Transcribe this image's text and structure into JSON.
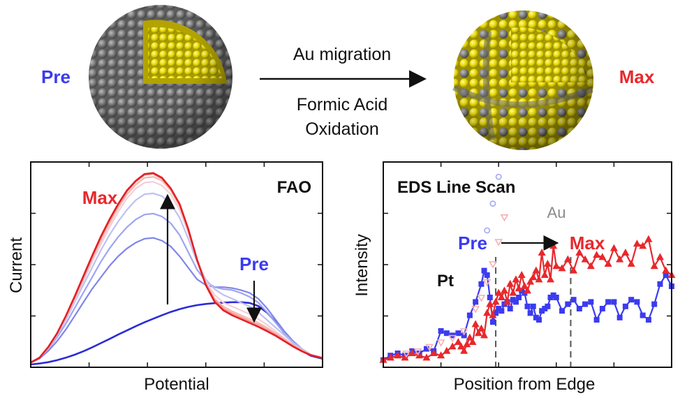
{
  "top": {
    "pre_label": "Pre",
    "max_label": "Max",
    "arrow_top": "Au migration",
    "arrow_bottom_1": "Formic Acid",
    "arrow_bottom_2": "Oxidation"
  },
  "colors": {
    "pre": "#3b3bf0",
    "max": "#e8282c",
    "au": "#f2e100",
    "pt": "#7a7a7a"
  },
  "chart_data": [
    {
      "type": "line",
      "title": "FAO",
      "xlabel": "Potential",
      "ylabel": "Current",
      "annotations": [
        "Max",
        "Pre"
      ],
      "x": [
        0,
        0.03,
        0.06,
        0.09,
        0.12,
        0.15,
        0.18,
        0.21,
        0.24,
        0.27,
        0.3,
        0.33,
        0.36,
        0.39,
        0.42,
        0.45,
        0.48,
        0.51,
        0.54,
        0.57,
        0.6,
        0.63,
        0.66,
        0.69,
        0.72,
        0.75,
        0.78,
        0.81,
        0.84,
        0.87,
        0.9,
        0.93,
        0.96,
        1.0
      ],
      "series": [
        {
          "values": [
            0,
            0.005,
            0.012,
            0.022,
            0.035,
            0.05,
            0.068,
            0.088,
            0.11,
            0.132,
            0.155,
            0.176,
            0.198,
            0.218,
            0.237,
            0.255,
            0.272,
            0.286,
            0.298,
            0.307,
            0.313,
            0.317,
            0.32,
            0.322,
            0.322,
            0.318,
            0.302,
            0.268,
            0.218,
            0.16,
            0.11,
            0.07,
            0.045,
            0.03
          ]
        },
        {
          "values": [
            0.01,
            0.03,
            0.07,
            0.12,
            0.18,
            0.25,
            0.32,
            0.39,
            0.45,
            0.51,
            0.56,
            0.6,
            0.63,
            0.65,
            0.655,
            0.64,
            0.61,
            0.56,
            0.5,
            0.44,
            0.41,
            0.4,
            0.4,
            0.395,
            0.385,
            0.37,
            0.34,
            0.29,
            0.23,
            0.17,
            0.12,
            0.08,
            0.05,
            0.035
          ]
        },
        {
          "values": [
            0.01,
            0.035,
            0.08,
            0.14,
            0.21,
            0.29,
            0.37,
            0.45,
            0.53,
            0.6,
            0.66,
            0.71,
            0.75,
            0.775,
            0.78,
            0.765,
            0.73,
            0.67,
            0.58,
            0.49,
            0.43,
            0.4,
            0.39,
            0.385,
            0.37,
            0.35,
            0.32,
            0.27,
            0.215,
            0.16,
            0.115,
            0.08,
            0.05,
            0.035
          ]
        },
        {
          "values": [
            0.01,
            0.035,
            0.085,
            0.15,
            0.23,
            0.32,
            0.41,
            0.5,
            0.59,
            0.67,
            0.74,
            0.8,
            0.85,
            0.88,
            0.885,
            0.87,
            0.83,
            0.76,
            0.65,
            0.53,
            0.44,
            0.39,
            0.36,
            0.34,
            0.32,
            0.3,
            0.27,
            0.23,
            0.19,
            0.15,
            0.11,
            0.08,
            0.05,
            0.035
          ]
        },
        {
          "values": [
            0.01,
            0.035,
            0.085,
            0.155,
            0.24,
            0.33,
            0.43,
            0.53,
            0.62,
            0.71,
            0.79,
            0.86,
            0.91,
            0.94,
            0.945,
            0.925,
            0.88,
            0.8,
            0.68,
            0.54,
            0.43,
            0.36,
            0.32,
            0.3,
            0.28,
            0.26,
            0.235,
            0.205,
            0.17,
            0.135,
            0.1,
            0.075,
            0.05,
            0.035
          ]
        },
        {
          "values": [
            0.01,
            0.035,
            0.09,
            0.16,
            0.245,
            0.34,
            0.44,
            0.545,
            0.64,
            0.73,
            0.81,
            0.88,
            0.93,
            0.965,
            0.97,
            0.95,
            0.9,
            0.82,
            0.69,
            0.54,
            0.42,
            0.34,
            0.3,
            0.275,
            0.255,
            0.235,
            0.215,
            0.19,
            0.16,
            0.13,
            0.1,
            0.075,
            0.05,
            0.035
          ]
        },
        {
          "values": [
            0.01,
            0.035,
            0.09,
            0.16,
            0.25,
            0.345,
            0.45,
            0.555,
            0.655,
            0.745,
            0.825,
            0.895,
            0.945,
            0.98,
            0.985,
            0.96,
            0.91,
            0.83,
            0.7,
            0.545,
            0.42,
            0.335,
            0.29,
            0.265,
            0.245,
            0.225,
            0.205,
            0.18,
            0.155,
            0.125,
            0.095,
            0.07,
            0.05,
            0.035
          ]
        },
        {
          "values": [
            0.01,
            0.035,
            0.09,
            0.16,
            0.25,
            0.35,
            0.455,
            0.56,
            0.66,
            0.75,
            0.83,
            0.9,
            0.95,
            0.985,
            0.99,
            0.965,
            0.91,
            0.83,
            0.7,
            0.54,
            0.41,
            0.325,
            0.28,
            0.255,
            0.235,
            0.215,
            0.195,
            0.172,
            0.148,
            0.12,
            0.092,
            0.068,
            0.048,
            0.033
          ]
        }
      ],
      "series_colors": [
        "#2b2bd8",
        "#7f86ea",
        "#9ea5f0",
        "#bcc1f4",
        "#f2cfd8",
        "#f6b8b0",
        "#f09a96",
        "#e41f23"
      ]
    },
    {
      "type": "line",
      "title": "EDS Line Scan",
      "xlabel": "Position from Edge",
      "ylabel": "Intensity",
      "annotations": [
        "Pre",
        "Max",
        "Au",
        "Pt"
      ],
      "series": [
        {
          "marker": "square",
          "x": [
            0,
            0.025,
            0.05,
            0.075,
            0.1,
            0.125,
            0.15,
            0.175,
            0.2,
            0.22,
            0.24,
            0.26,
            0.28,
            0.3,
            0.32,
            0.34,
            0.35,
            0.36,
            0.37,
            0.38,
            0.39,
            0.4,
            0.41,
            0.42,
            0.43,
            0.44,
            0.45,
            0.46,
            0.47,
            0.48,
            0.49,
            0.5,
            0.51,
            0.52,
            0.53,
            0.54,
            0.55,
            0.56,
            0.57,
            0.58,
            0.59,
            0.6,
            0.62,
            0.64,
            0.66,
            0.68,
            0.7,
            0.72,
            0.74,
            0.76,
            0.78,
            0.8,
            0.82,
            0.84,
            0.86,
            0.88,
            0.9,
            0.92,
            0.94,
            0.96,
            0.98,
            1.0
          ],
          "values": [
            0.02,
            0.04,
            0.05,
            0.04,
            0.06,
            0.05,
            0.07,
            0.06,
            0.15,
            0.14,
            0.13,
            0.14,
            0.13,
            0.22,
            0.28,
            0.36,
            0.42,
            0.4,
            0.3,
            0.19,
            0.23,
            0.25,
            0.24,
            0.27,
            0.28,
            0.25,
            0.29,
            0.28,
            0.3,
            0.33,
            0.32,
            0.26,
            0.23,
            0.26,
            0.21,
            0.2,
            0.24,
            0.25,
            0.26,
            0.3,
            0.31,
            0.3,
            0.24,
            0.27,
            0.29,
            0.25,
            0.27,
            0.28,
            0.2,
            0.25,
            0.28,
            0.28,
            0.21,
            0.26,
            0.29,
            0.28,
            0.22,
            0.2,
            0.27,
            0.36,
            0.4,
            0.35
          ]
        },
        {
          "marker": "triangle",
          "x": [
            0,
            0.025,
            0.05,
            0.075,
            0.1,
            0.125,
            0.15,
            0.175,
            0.2,
            0.22,
            0.24,
            0.26,
            0.27,
            0.28,
            0.29,
            0.3,
            0.31,
            0.32,
            0.33,
            0.34,
            0.35,
            0.36,
            0.37,
            0.38,
            0.39,
            0.4,
            0.41,
            0.42,
            0.43,
            0.44,
            0.45,
            0.46,
            0.47,
            0.48,
            0.49,
            0.5,
            0.51,
            0.52,
            0.53,
            0.54,
            0.55,
            0.56,
            0.57,
            0.58,
            0.59,
            0.6,
            0.62,
            0.64,
            0.66,
            0.68,
            0.7,
            0.72,
            0.74,
            0.76,
            0.78,
            0.8,
            0.82,
            0.84,
            0.86,
            0.88,
            0.9,
            0.92,
            0.94,
            0.96,
            0.98,
            1.0
          ],
          "values": [
            0.02,
            0.03,
            0.04,
            0.03,
            0.05,
            0.04,
            0.03,
            0.05,
            0.04,
            0.06,
            0.08,
            0.1,
            0.08,
            0.06,
            0.09,
            0.12,
            0.1,
            0.18,
            0.14,
            0.16,
            0.13,
            0.23,
            0.27,
            0.22,
            0.28,
            0.32,
            0.3,
            0.33,
            0.28,
            0.36,
            0.32,
            0.38,
            0.34,
            0.4,
            0.35,
            0.33,
            0.37,
            0.39,
            0.42,
            0.38,
            0.5,
            0.4,
            0.45,
            0.38,
            0.53,
            0.44,
            0.43,
            0.47,
            0.42,
            0.5,
            0.47,
            0.44,
            0.49,
            0.48,
            0.45,
            0.52,
            0.47,
            0.5,
            0.45,
            0.54,
            0.53,
            0.56,
            0.44,
            0.48,
            0.42,
            0.4
          ]
        },
        {
          "marker": "circle-open",
          "x": [
            0.36,
            0.38,
            0.4,
            0.42,
            0.44,
            0.46,
            0.48,
            0.5
          ],
          "values": [
            0.6,
            0.72,
            0.84,
            0.95,
            1.03,
            1.08,
            1.12,
            1.15
          ]
        },
        {
          "marker": "triangle-down-open",
          "x": [
            0.08,
            0.12,
            0.16,
            0.2,
            0.24,
            0.28,
            0.32,
            0.34,
            0.36,
            0.38,
            0.4,
            0.42
          ],
          "values": [
            0.05,
            0.06,
            0.08,
            0.1,
            0.12,
            0.15,
            0.25,
            0.3,
            0.37,
            0.45,
            0.55,
            0.66
          ]
        }
      ],
      "series_colors": [
        "#3b3bf0",
        "#e8282c",
        "#aab0f4",
        "#f6b0b0"
      ],
      "vlines": [
        0.39,
        0.65
      ]
    }
  ]
}
